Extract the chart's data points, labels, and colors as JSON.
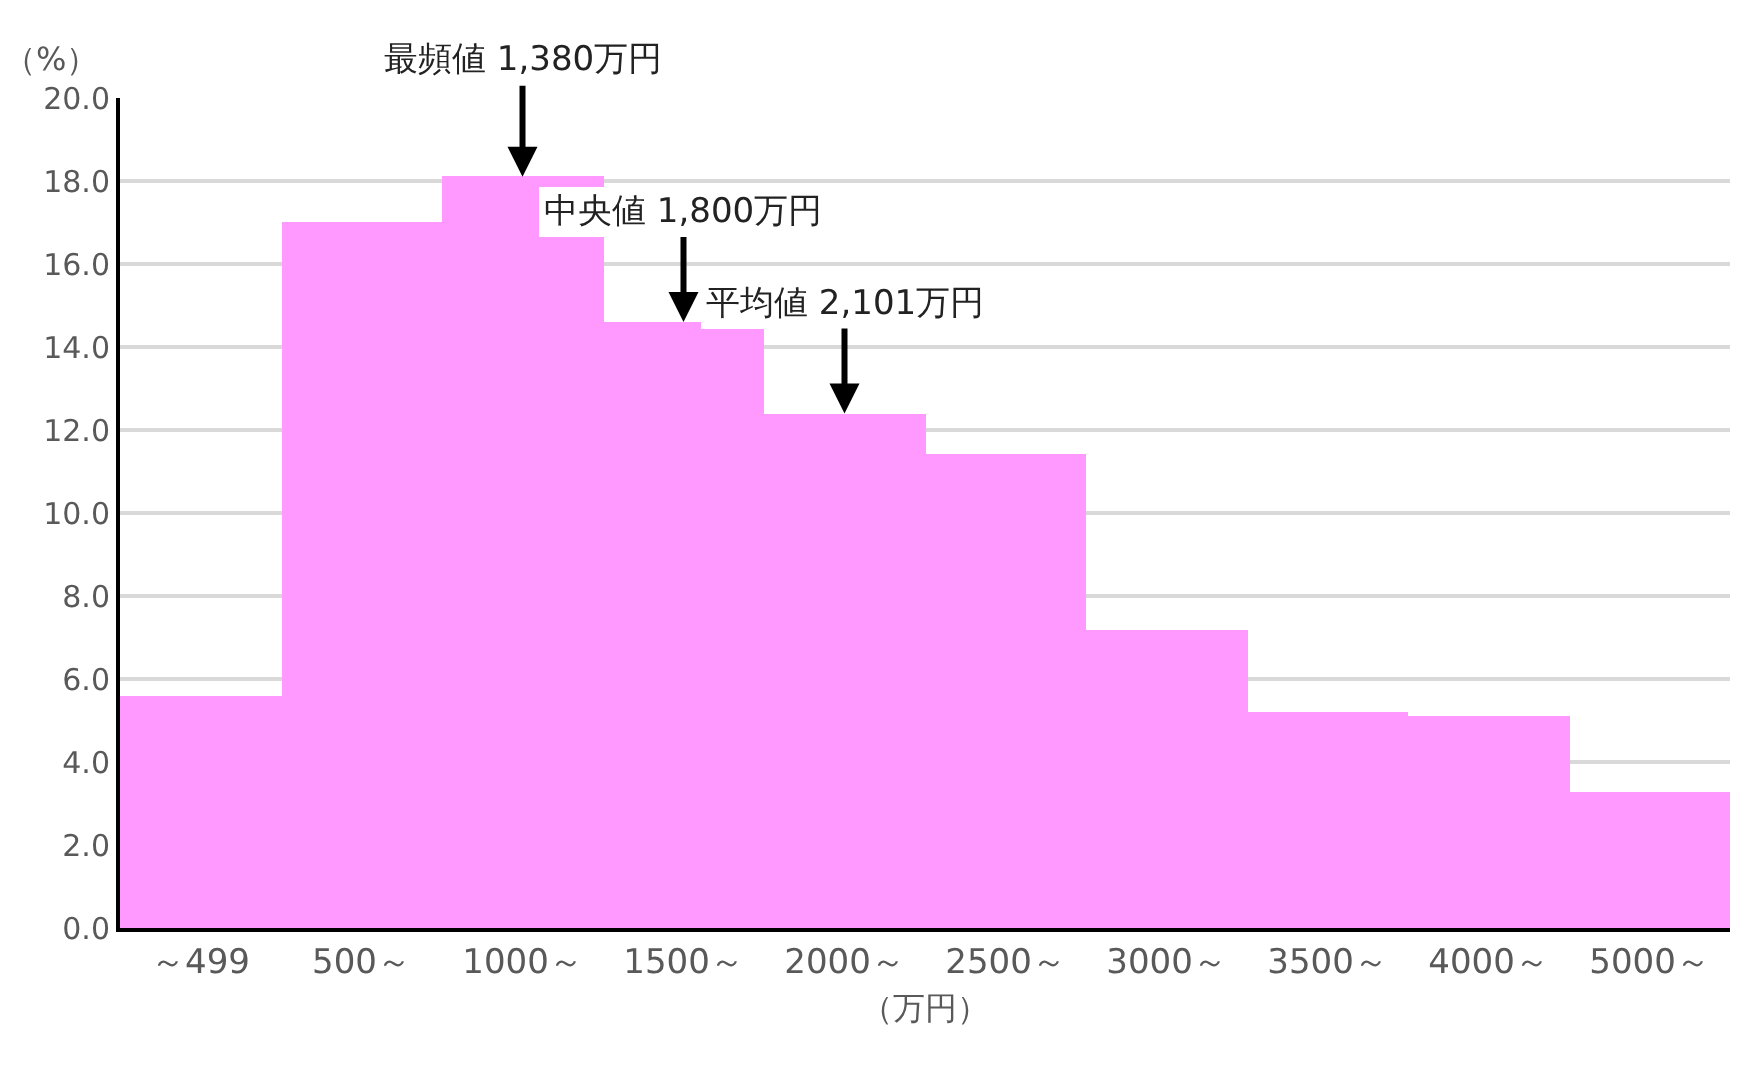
{
  "chart_data": {
    "type": "bar",
    "xlabel": "（万円）",
    "ylabel": "（%）",
    "categories": [
      "～499",
      "500～",
      "1000～",
      "1500～",
      "2000～",
      "2500～",
      "3000～",
      "3500～",
      "4000～",
      "5000～"
    ],
    "values": [
      5.6,
      17.0,
      18.1,
      14.6,
      12.4,
      11.4,
      7.2,
      5.2,
      5.1,
      3.3
    ],
    "color": "#ff99ff",
    "ylim": [
      0,
      20
    ],
    "yticks": [
      {
        "value": 0,
        "label": "0.0"
      },
      {
        "value": 2,
        "label": "2.0"
      },
      {
        "value": 4,
        "label": "4.0"
      },
      {
        "value": 6,
        "label": "6.0"
      },
      {
        "value": 8,
        "label": "8.0"
      },
      {
        "value": 10,
        "label": "10.0"
      },
      {
        "value": 12,
        "label": "12.0"
      },
      {
        "value": 14,
        "label": "14.0"
      },
      {
        "value": 16,
        "label": "16.0"
      },
      {
        "value": 18,
        "label": "18.0"
      },
      {
        "value": 20,
        "label": "20.0"
      }
    ],
    "grid": "y",
    "annotations": [
      {
        "text": "最頻値 1,380万円",
        "x": "1000～",
        "y": 18.1
      },
      {
        "text": "中央値 1,800万円",
        "x": "1500～",
        "y": 14.6
      },
      {
        "text": "平均値 2,101万円",
        "x": "2000～",
        "y": 12.4
      }
    ]
  }
}
